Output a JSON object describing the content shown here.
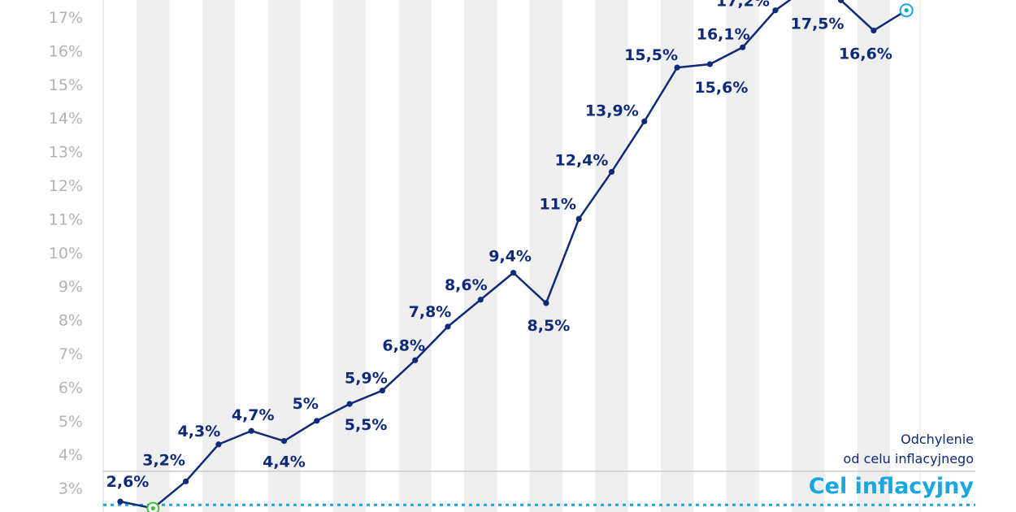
{
  "chart_data": {
    "type": "line",
    "ylim": [
      2.5,
      17.6
    ],
    "yticks": [
      3,
      4,
      5,
      6,
      7,
      8,
      9,
      10,
      11,
      12,
      13,
      14,
      15,
      16,
      17
    ],
    "ytick_labels": [
      "3%",
      "4%",
      "5%",
      "6%",
      "7%",
      "8%",
      "9%",
      "10%",
      "11%",
      "12%",
      "13%",
      "14%",
      "15%",
      "16%",
      "17%"
    ],
    "grid": false,
    "series": [
      {
        "values": [
          2.6,
          2.4,
          3.2,
          4.3,
          4.7,
          4.4,
          5.0,
          5.5,
          5.9,
          6.8,
          7.8,
          8.6,
          9.4,
          8.5,
          11.0,
          12.4,
          13.9,
          15.5,
          15.6,
          16.1,
          17.2,
          17.9,
          17.5,
          16.6,
          17.2
        ],
        "labels": [
          "2,6%",
          "",
          "3,2%",
          "4,3%",
          "4,7%",
          "4,4%",
          "5%",
          "5,5%",
          "5,9%",
          "6,8%",
          "7,8%",
          "8,6%",
          "9,4%",
          "8,5%",
          "11%",
          "12,4%",
          "13,9%",
          "15,5%",
          "15,6%",
          "16,1%",
          "17,2%",
          "",
          "17,5%",
          "16,6%",
          ""
        ],
        "color": "#0e2a78"
      }
    ],
    "reference_lines": [
      {
        "value": 2.5,
        "color": "#1aa7e0",
        "style": "dotted"
      },
      {
        "value": 3.5,
        "color": "#cccccc",
        "style": "solid"
      }
    ],
    "annotations": [
      "Odchylenie",
      "od celu inflacyjnego",
      "Cel inflacyjny"
    ]
  },
  "colors": {
    "line": "#0e2a78",
    "target": "#1aa7e0",
    "start_marker": "#3dbf3d",
    "stripe": "#efefef",
    "tick_text": "#b3b3b3"
  }
}
